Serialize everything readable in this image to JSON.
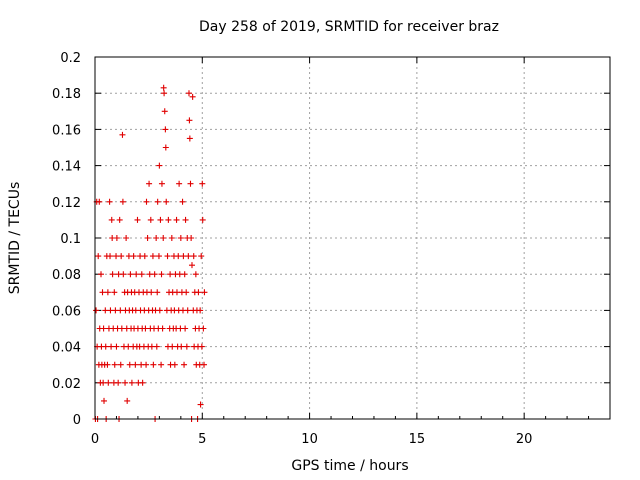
{
  "chart_data": {
    "type": "scatter",
    "title": "Day 258 of 2019, SRMTID for receiver braz",
    "xlabel": "GPS time / hours",
    "ylabel": "SRMTID / TECUs",
    "xlim": [
      0,
      24
    ],
    "ylim": [
      0,
      0.2
    ],
    "xticks": [
      0,
      5,
      10,
      15,
      20
    ],
    "xtick_labels": [
      "0",
      "5",
      "10",
      "15",
      "20"
    ],
    "yticks": [
      0,
      0.02,
      0.04,
      0.06,
      0.08,
      0.1,
      0.12,
      0.14,
      0.16,
      0.18,
      0.2
    ],
    "ytick_labels": [
      "0",
      "0.02",
      "0.04",
      "0.06",
      "0.08",
      "0.1",
      "0.12",
      "0.14",
      "0.16",
      "0.18",
      "0.2"
    ],
    "grid": true,
    "marker": "+",
    "color": "#e00000",
    "series": [
      {
        "name": "braz",
        "points": [
          [
            0.02,
            0.0
          ],
          [
            0.05,
            0.06
          ],
          [
            0.08,
            0.12
          ],
          [
            0.1,
            0.04
          ],
          [
            0.12,
            0.0
          ],
          [
            0.15,
            0.09
          ],
          [
            0.18,
            0.03
          ],
          [
            0.2,
            0.12
          ],
          [
            0.22,
            0.05
          ],
          [
            0.25,
            0.02
          ],
          [
            0.28,
            0.08
          ],
          [
            0.3,
            0.04
          ],
          [
            0.32,
            0.03
          ],
          [
            0.35,
            0.07
          ],
          [
            0.38,
            0.02
          ],
          [
            0.4,
            0.05
          ],
          [
            0.42,
            0.01
          ],
          [
            0.45,
            0.03
          ],
          [
            0.48,
            0.06
          ],
          [
            0.5,
            0.04
          ],
          [
            0.52,
            0.0
          ],
          [
            0.55,
            0.09
          ],
          [
            0.58,
            0.03
          ],
          [
            0.6,
            0.07
          ],
          [
            0.62,
            0.02
          ],
          [
            0.65,
            0.05
          ],
          [
            0.68,
            0.12
          ],
          [
            0.7,
            0.09
          ],
          [
            0.72,
            0.06
          ],
          [
            0.75,
            0.04
          ],
          [
            0.78,
            0.11
          ],
          [
            0.8,
            0.1
          ],
          [
            0.82,
            0.08
          ],
          [
            0.85,
            0.05
          ],
          [
            0.88,
            0.02
          ],
          [
            0.9,
            0.07
          ],
          [
            0.92,
            0.03
          ],
          [
            0.95,
            0.06
          ],
          [
            0.98,
            0.09
          ],
          [
            1.0,
            0.04
          ],
          [
            1.02,
            0.1
          ],
          [
            1.05,
            0.05
          ],
          [
            1.08,
            0.02
          ],
          [
            1.1,
            0.08
          ],
          [
            1.12,
            0.0
          ],
          [
            1.15,
            0.11
          ],
          [
            1.18,
            0.06
          ],
          [
            1.2,
            0.03
          ],
          [
            1.22,
            0.09
          ],
          [
            1.25,
            0.05
          ],
          [
            1.28,
            0.157
          ],
          [
            1.3,
            0.12
          ],
          [
            1.32,
            0.08
          ],
          [
            1.35,
            0.04
          ],
          [
            1.38,
            0.07
          ],
          [
            1.4,
            0.02
          ],
          [
            1.42,
            0.06
          ],
          [
            1.45,
            0.1
          ],
          [
            1.48,
            0.05
          ],
          [
            1.5,
            0.01
          ],
          [
            1.52,
            0.07
          ],
          [
            1.55,
            0.04
          ],
          [
            1.58,
            0.09
          ],
          [
            1.6,
            0.06
          ],
          [
            1.62,
            0.03
          ],
          [
            1.65,
            0.08
          ],
          [
            1.68,
            0.05
          ],
          [
            1.7,
            0.07
          ],
          [
            1.72,
            0.02
          ],
          [
            1.75,
            0.06
          ],
          [
            1.78,
            0.04
          ],
          [
            1.8,
            0.09
          ],
          [
            1.82,
            0.05
          ],
          [
            1.85,
            0.07
          ],
          [
            1.88,
            0.03
          ],
          [
            1.9,
            0.06
          ],
          [
            1.92,
            0.08
          ],
          [
            1.95,
            0.04
          ],
          [
            1.98,
            0.11
          ],
          [
            2.0,
            0.05
          ],
          [
            2.02,
            0.02
          ],
          [
            2.05,
            0.07
          ],
          [
            2.08,
            0.04
          ],
          [
            2.1,
            0.09
          ],
          [
            2.12,
            0.06
          ],
          [
            2.15,
            0.03
          ],
          [
            2.18,
            0.08
          ],
          [
            2.2,
            0.05
          ],
          [
            2.22,
            0.02
          ],
          [
            2.25,
            0.07
          ],
          [
            2.28,
            0.04
          ],
          [
            2.3,
            0.06
          ],
          [
            2.32,
            0.09
          ],
          [
            2.35,
            0.05
          ],
          [
            2.38,
            0.03
          ],
          [
            2.4,
            0.12
          ],
          [
            2.42,
            0.07
          ],
          [
            2.45,
            0.1
          ],
          [
            2.48,
            0.04
          ],
          [
            2.5,
            0.06
          ],
          [
            2.52,
            0.13
          ],
          [
            2.55,
            0.08
          ],
          [
            2.58,
            0.05
          ],
          [
            2.6,
            0.11
          ],
          [
            2.62,
            0.07
          ],
          [
            2.65,
            0.04
          ],
          [
            2.68,
            0.06
          ],
          [
            2.7,
            0.09
          ],
          [
            2.72,
            0.03
          ],
          [
            2.75,
            0.05
          ],
          [
            2.78,
            0.08
          ],
          [
            2.8,
            0.0
          ],
          [
            2.82,
            0.06
          ],
          [
            2.85,
            0.1
          ],
          [
            2.88,
            0.04
          ],
          [
            2.9,
            0.07
          ],
          [
            2.92,
            0.12
          ],
          [
            2.95,
            0.05
          ],
          [
            2.98,
            0.09
          ],
          [
            3.0,
            0.14
          ],
          [
            3.02,
            0.06
          ],
          [
            3.05,
            0.11
          ],
          [
            3.08,
            0.03
          ],
          [
            3.1,
            0.08
          ],
          [
            3.12,
            0.13
          ],
          [
            3.15,
            0.05
          ],
          [
            3.18,
            0.1
          ],
          [
            3.2,
            0.183
          ],
          [
            3.22,
            0.18
          ],
          [
            3.25,
            0.17
          ],
          [
            3.28,
            0.16
          ],
          [
            3.3,
            0.15
          ],
          [
            3.32,
            0.12
          ],
          [
            3.35,
            0.06
          ],
          [
            3.38,
            0.09
          ],
          [
            3.4,
            0.04
          ],
          [
            3.42,
            0.11
          ],
          [
            3.45,
            0.07
          ],
          [
            3.48,
            0.05
          ],
          [
            3.5,
            0.08
          ],
          [
            3.52,
            0.03
          ],
          [
            3.55,
            0.06
          ],
          [
            3.58,
            0.1
          ],
          [
            3.6,
            0.04
          ],
          [
            3.62,
            0.07
          ],
          [
            3.65,
            0.05
          ],
          [
            3.68,
            0.09
          ],
          [
            3.7,
            0.06
          ],
          [
            3.72,
            0.03
          ],
          [
            3.75,
            0.08
          ],
          [
            3.78,
            0.05
          ],
          [
            3.8,
            0.11
          ],
          [
            3.82,
            0.07
          ],
          [
            3.85,
            0.04
          ],
          [
            3.88,
            0.09
          ],
          [
            3.9,
            0.06
          ],
          [
            3.92,
            0.13
          ],
          [
            3.95,
            0.08
          ],
          [
            3.98,
            0.05
          ],
          [
            4.0,
            0.1
          ],
          [
            4.02,
            0.04
          ],
          [
            4.05,
            0.07
          ],
          [
            4.08,
            0.12
          ],
          [
            4.1,
            0.06
          ],
          [
            4.12,
            0.09
          ],
          [
            4.15,
            0.03
          ],
          [
            4.18,
            0.08
          ],
          [
            4.2,
            0.05
          ],
          [
            4.22,
            0.11
          ],
          [
            4.25,
            0.07
          ],
          [
            4.28,
            0.04
          ],
          [
            4.3,
            0.1
          ],
          [
            4.32,
            0.06
          ],
          [
            4.35,
            0.09
          ],
          [
            4.38,
            0.18
          ],
          [
            4.4,
            0.165
          ],
          [
            4.42,
            0.155
          ],
          [
            4.45,
            0.13
          ],
          [
            4.48,
            0.1
          ],
          [
            4.5,
            0.0
          ],
          [
            4.52,
            0.085
          ],
          [
            4.55,
            0.178
          ],
          [
            4.58,
            0.06
          ],
          [
            4.6,
            0.09
          ],
          [
            4.62,
            0.04
          ],
          [
            4.65,
            0.07
          ],
          [
            4.68,
            0.05
          ],
          [
            4.7,
            0.08
          ],
          [
            4.72,
            0.03
          ],
          [
            4.75,
            0.06
          ],
          [
            4.78,
            0.0
          ],
          [
            4.8,
            0.04
          ],
          [
            4.82,
            0.07
          ],
          [
            4.85,
            0.05
          ],
          [
            4.88,
            0.03
          ],
          [
            4.9,
            0.06
          ],
          [
            4.92,
            0.008
          ],
          [
            4.95,
            0.09
          ],
          [
            4.98,
            0.04
          ],
          [
            5.0,
            0.13
          ],
          [
            5.02,
            0.11
          ],
          [
            5.05,
            0.05
          ],
          [
            5.08,
            0.03
          ],
          [
            5.1,
            0.07
          ]
        ]
      }
    ]
  }
}
